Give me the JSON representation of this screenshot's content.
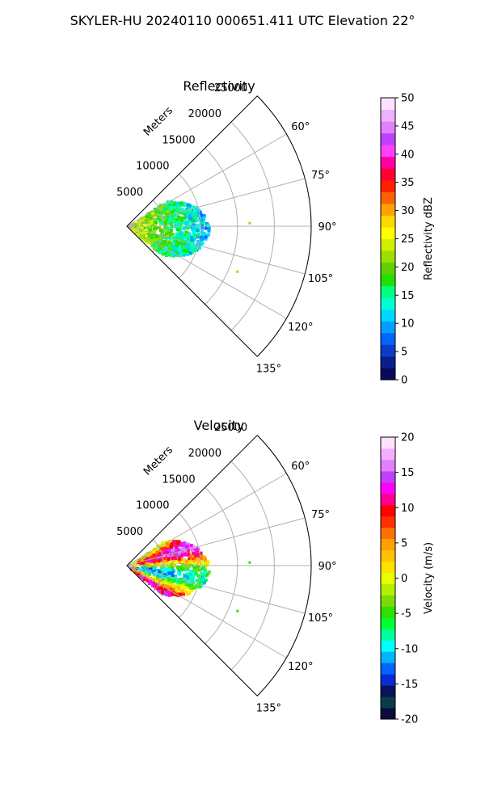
{
  "figure": {
    "suptitle": "SKYLER-HU  20240110  000651.411 UTC Elevation 22°"
  },
  "chart_data": [
    {
      "type": "heatmap",
      "title": "Reflectivity",
      "range_label": "Meters",
      "range_ticks": [
        5000,
        10000,
        15000,
        20000,
        25000
      ],
      "range_tick_labels": [
        "5000",
        "10000",
        "15000",
        "20000",
        "25000"
      ],
      "range_max_m": 25000,
      "azimuth_ticks_deg": [
        60,
        75,
        90,
        105,
        120,
        135
      ],
      "azimuth_tick_labels": [
        "60°",
        "75°",
        "90°",
        "105°",
        "120°",
        "135°"
      ],
      "azimuth_range_deg": [
        45,
        135
      ],
      "grid": true,
      "colorbar": {
        "label": "Reflectivity dBZ",
        "min": 0,
        "max": 50,
        "ticks": [
          0,
          5,
          10,
          15,
          20,
          25,
          30,
          35,
          40,
          45,
          50
        ],
        "tick_labels": [
          "0",
          "5",
          "10",
          "15",
          "20",
          "25",
          "30",
          "35",
          "40",
          "45",
          "50"
        ]
      },
      "echo_region": {
        "azimuth_deg": [
          55,
          128
        ],
        "range_m": [
          0,
          11000
        ],
        "dominant_values": "10-25 dBZ near radar, 10-15 dBZ at outer edge"
      }
    },
    {
      "type": "heatmap",
      "title": "Velocity",
      "range_label": "Meters",
      "range_ticks": [
        5000,
        10000,
        15000,
        20000,
        25000
      ],
      "range_tick_labels": [
        "5000",
        "10000",
        "15000",
        "20000",
        "25000"
      ],
      "range_max_m": 25000,
      "azimuth_ticks_deg": [
        60,
        75,
        90,
        105,
        120,
        135
      ],
      "azimuth_tick_labels": [
        "60°",
        "75°",
        "90°",
        "105°",
        "120°",
        "135°"
      ],
      "azimuth_range_deg": [
        45,
        135
      ],
      "grid": true,
      "colorbar": {
        "label": "Velocity (m/s)",
        "min": -20,
        "max": 20,
        "ticks": [
          -20,
          -15,
          -10,
          -5,
          0,
          5,
          10,
          15,
          20
        ],
        "tick_labels": [
          "-20",
          "-15",
          "-10",
          "-5",
          "0",
          "5",
          "10",
          "15",
          "20"
        ]
      },
      "echo_region": {
        "azimuth_deg": [
          55,
          128
        ],
        "range_m": [
          0,
          11000
        ],
        "dominant_values": "-10 to 15 m/s, folded bands near radar"
      }
    }
  ],
  "colors": {
    "reflectivity_scale": [
      "#0a0a5a",
      "#0b1e8c",
      "#0a3cc8",
      "#0064ff",
      "#00a0ff",
      "#00d8ff",
      "#00ffd0",
      "#00ff80",
      "#20e000",
      "#60d000",
      "#9ae000",
      "#d0f000",
      "#ffff00",
      "#ffd800",
      "#ffa000",
      "#ff6000",
      "#ff2000",
      "#ff0030",
      "#ff00a0",
      "#ff40ff",
      "#c040ff",
      "#e080ff",
      "#f0b0ff",
      "#ffe0ff"
    ],
    "velocity_scale": [
      "#0a0a3c",
      "#0a3c46",
      "#08145a",
      "#0a2ad2",
      "#0064ff",
      "#00b4ff",
      "#00ffff",
      "#00ffa0",
      "#00ff30",
      "#30e000",
      "#7adc00",
      "#b0f000",
      "#e8ff00",
      "#ffe000",
      "#ffc000",
      "#ffa000",
      "#ff7000",
      "#ff3000",
      "#ff0000",
      "#ff0090",
      "#ff00ff",
      "#c040ff",
      "#e080ff",
      "#f0b0ff",
      "#ffe0ff"
    ],
    "grid": "#b0b0b0"
  }
}
